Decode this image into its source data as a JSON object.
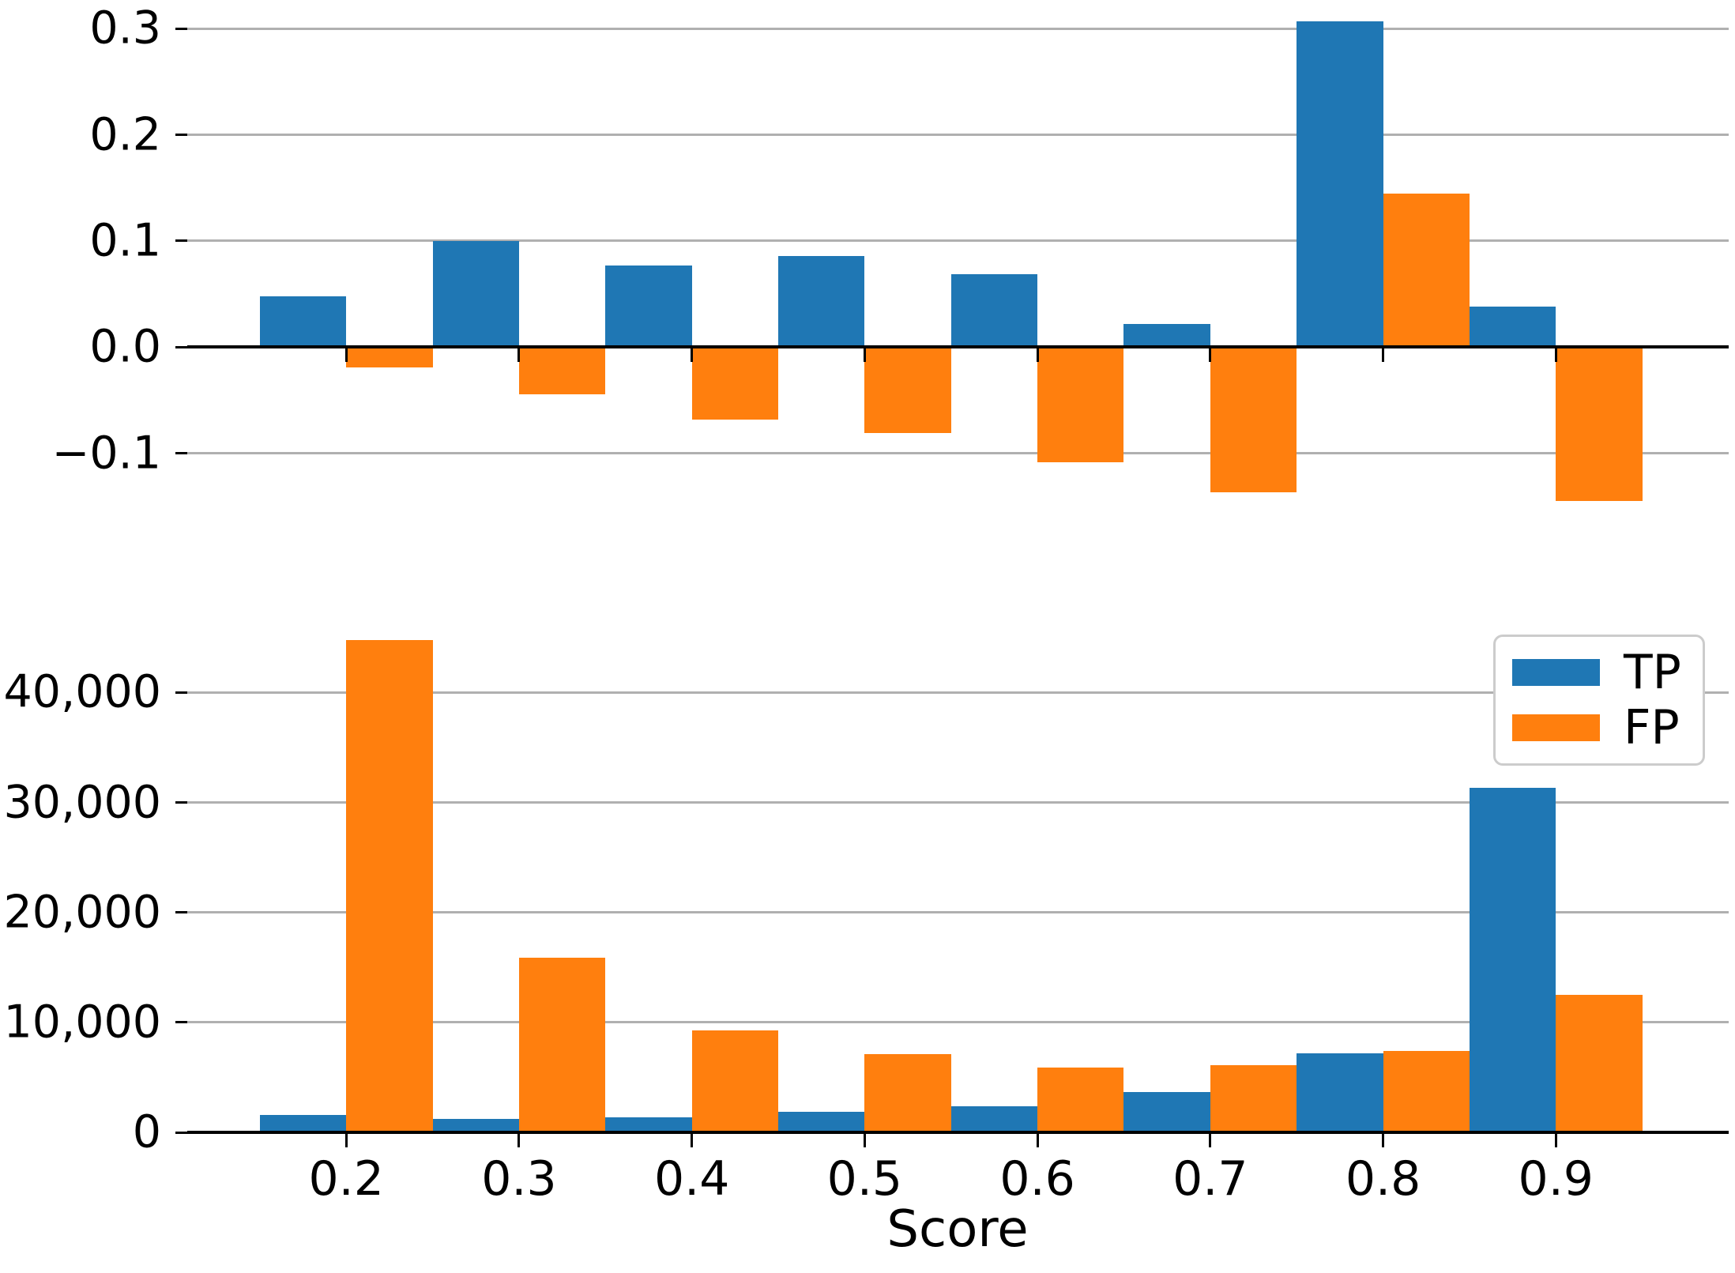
{
  "colors": {
    "tp": "#1f77b4",
    "fp": "#ff7f0e",
    "grid": "#b0b0b0",
    "axis": "#000000",
    "legend_border": "#cccccc",
    "background": "#ffffff"
  },
  "legend": {
    "items": [
      {
        "label": "TP",
        "color_key": "tp"
      },
      {
        "label": "FP",
        "color_key": "fp"
      }
    ]
  },
  "chart_data": [
    {
      "id": "top",
      "type": "bar",
      "title": "",
      "xlabel": "",
      "ylabel": "",
      "x": [
        0.2,
        0.3,
        0.4,
        0.5,
        0.6,
        0.7,
        0.8,
        0.9
      ],
      "bar_width": 0.05,
      "series": [
        {
          "name": "TP",
          "color_key": "tp",
          "align": "left",
          "values": [
            0.048,
            0.1,
            0.077,
            0.086,
            0.069,
            0.022,
            0.307,
            0.038
          ]
        },
        {
          "name": "FP",
          "color_key": "fp",
          "align": "right",
          "values": [
            -0.019,
            -0.044,
            -0.068,
            -0.081,
            -0.108,
            -0.137,
            0.145,
            -0.145
          ]
        }
      ],
      "xlim": [
        0.108,
        1.0
      ],
      "ylim": [
        -0.153,
        0.321
      ],
      "yticks": [
        {
          "v": 0.3,
          "label": "0.3"
        },
        {
          "v": 0.2,
          "label": "0.2"
        },
        {
          "v": 0.1,
          "label": "0.1"
        },
        {
          "v": 0.0,
          "label": "0.0"
        },
        {
          "v": -0.1,
          "label": "−0.1"
        }
      ],
      "xticks": [
        0.2,
        0.3,
        0.4,
        0.5,
        0.6,
        0.7,
        0.8,
        0.9
      ],
      "xtick_labels": null,
      "grid": true,
      "legend_position": null
    },
    {
      "id": "bottom",
      "type": "bar",
      "title": "",
      "xlabel": "Score",
      "ylabel": "",
      "x": [
        0.2,
        0.3,
        0.4,
        0.5,
        0.6,
        0.7,
        0.8,
        0.9
      ],
      "bar_width": 0.05,
      "series": [
        {
          "name": "TP",
          "color_key": "tp",
          "align": "left",
          "values": [
            1600,
            1200,
            1400,
            1900,
            2400,
            3700,
            7200,
            31300
          ]
        },
        {
          "name": "FP",
          "color_key": "fp",
          "align": "right",
          "values": [
            44800,
            15900,
            9300,
            7100,
            5900,
            6100,
            7400,
            12500
          ]
        }
      ],
      "xlim": [
        0.108,
        1.0
      ],
      "ylim": [
        0,
        48000
      ],
      "yticks": [
        {
          "v": 40000,
          "label": "40,000"
        },
        {
          "v": 30000,
          "label": "30,000"
        },
        {
          "v": 20000,
          "label": "20,000"
        },
        {
          "v": 10000,
          "label": "10,000"
        },
        {
          "v": 0,
          "label": "0"
        }
      ],
      "xticks": [
        0.2,
        0.3,
        0.4,
        0.5,
        0.6,
        0.7,
        0.8,
        0.9
      ],
      "xtick_labels": [
        "0.2",
        "0.3",
        "0.4",
        "0.5",
        "0.6",
        "0.7",
        "0.8",
        "0.9"
      ],
      "grid": true,
      "legend_position": "upper right"
    }
  ]
}
